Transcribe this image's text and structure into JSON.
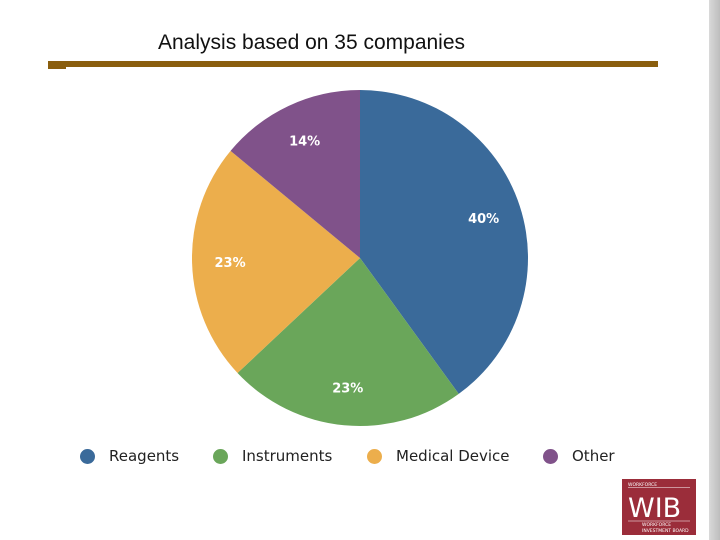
{
  "title": "Analysis based on 35 companies",
  "colors": {
    "rule": "#8a5e0e",
    "reagents": "#3a6a9a",
    "instruments": "#6aa65a",
    "medical_device": "#ecae4c",
    "other": "#80528a",
    "logo_bg": "#9b2d3a"
  },
  "chart_data": {
    "type": "pie",
    "title": "",
    "slices": [
      {
        "label": "Reagents",
        "value": 40,
        "display": "40%",
        "color": "#3a6a9a"
      },
      {
        "label": "Instruments",
        "value": 23,
        "display": "23%",
        "color": "#6aa65a"
      },
      {
        "label": "Medical Device",
        "value": 23,
        "display": "23%",
        "color": "#ecae4c"
      },
      {
        "label": "Other",
        "value": 14,
        "display": "14%",
        "color": "#80528a"
      }
    ],
    "legend_position": "bottom"
  },
  "legend": [
    {
      "label": "Reagents",
      "color": "#3a6a9a"
    },
    {
      "label": "Instruments",
      "color": "#6aa65a"
    },
    {
      "label": "Medical Device",
      "color": "#ecae4c"
    },
    {
      "label": "Other",
      "color": "#80528a"
    }
  ],
  "logo": {
    "top_text": "WORKFORCE",
    "main_text": "WIB",
    "bottom_text_1": "WORKFORCE",
    "bottom_text_2": "INVESTMENT BOARD"
  }
}
